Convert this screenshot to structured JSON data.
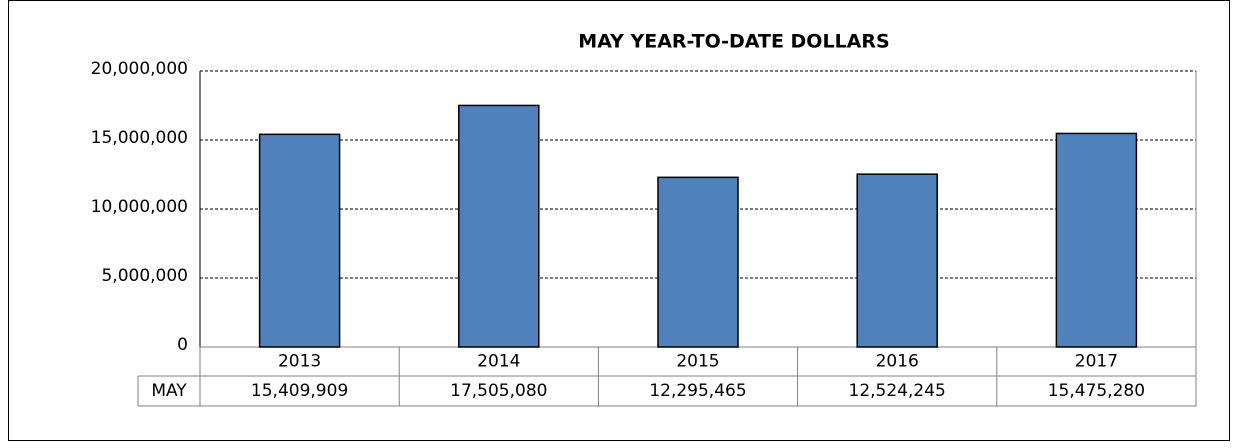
{
  "chart_data": {
    "type": "bar",
    "title": "MAY YEAR-TO-DATE DOLLARS",
    "categories": [
      "2013",
      "2014",
      "2015",
      "2016",
      "2017"
    ],
    "series": [
      {
        "name": "MAY",
        "color": "#4f81bd",
        "values": [
          15409909,
          17505080,
          12295465,
          12524245,
          15475280
        ],
        "value_labels": [
          "15,409,909",
          "17,505,080",
          "12,295,465",
          "12,524,245",
          "15,475,280"
        ]
      }
    ],
    "ylim": [
      0,
      20000000
    ],
    "yticks": [
      0,
      {
        "value": 5000000,
        "label": "5,000,000"
      },
      {
        "value": 10000000,
        "label": "10,000,000"
      },
      {
        "value": 15000000,
        "label": "15,000,000"
      },
      {
        "value": 20000000,
        "label": "20,000,000"
      }
    ],
    "grid": true
  }
}
